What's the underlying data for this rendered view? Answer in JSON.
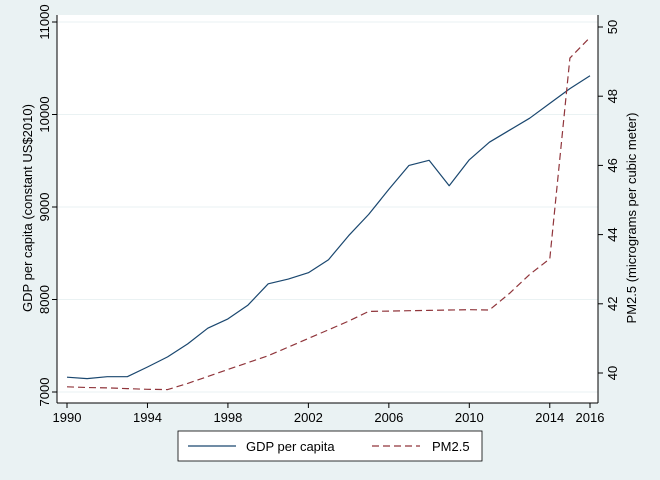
{
  "chart_data": {
    "type": "line",
    "title": "",
    "xlabel": "",
    "ylabel": "GDP per capita (constant US$2010)",
    "y2label": "PM2.5 (micrograms per cubic meter)",
    "xlim": [
      1990,
      2016
    ],
    "ylim": [
      7000,
      11000
    ],
    "y2lim": [
      39.5,
      50
    ],
    "xticks": [
      1990,
      1994,
      1998,
      2002,
      2006,
      2010,
      2014,
      2016
    ],
    "yticks": [
      7000,
      8000,
      9000,
      10000,
      11000
    ],
    "y2ticks": [
      40,
      42,
      44,
      46,
      48,
      50
    ],
    "grid": true,
    "legend_position": "bottom",
    "colors": {
      "gdp": "#1a476f",
      "pm": "#90353b",
      "plot_bg": "#ffffff",
      "outer_bg": "#eaf2f3",
      "grid": "#eaf2f3"
    },
    "x": [
      1990,
      1991,
      1992,
      1993,
      1994,
      1995,
      1996,
      1997,
      1998,
      1999,
      2000,
      2001,
      2002,
      2003,
      2004,
      2005,
      2006,
      2007,
      2008,
      2009,
      2010,
      2011,
      2012,
      2013,
      2014,
      2015,
      2016
    ],
    "series": [
      {
        "name": "GDP per capita",
        "axis": "left",
        "style": "solid",
        "values": [
          7160,
          7145,
          7165,
          7165,
          7270,
          7380,
          7520,
          7690,
          7790,
          7940,
          8170,
          8220,
          8290,
          8430,
          8690,
          8920,
          9190,
          9450,
          9505,
          9230,
          9510,
          9700,
          9830,
          9960,
          10120,
          10280,
          10420
        ]
      },
      {
        "name": "PM2.5",
        "axis": "right",
        "style": "dashed",
        "values": [
          39.6,
          39.58,
          39.57,
          39.55,
          39.53,
          39.52,
          39.7,
          39.9,
          40.1,
          40.3,
          40.5,
          40.75,
          41.0,
          41.25,
          41.5,
          41.78,
          41.79,
          41.8,
          41.81,
          41.82,
          41.83,
          41.82,
          42.3,
          42.85,
          43.3,
          49.1,
          49.7
        ]
      }
    ]
  }
}
